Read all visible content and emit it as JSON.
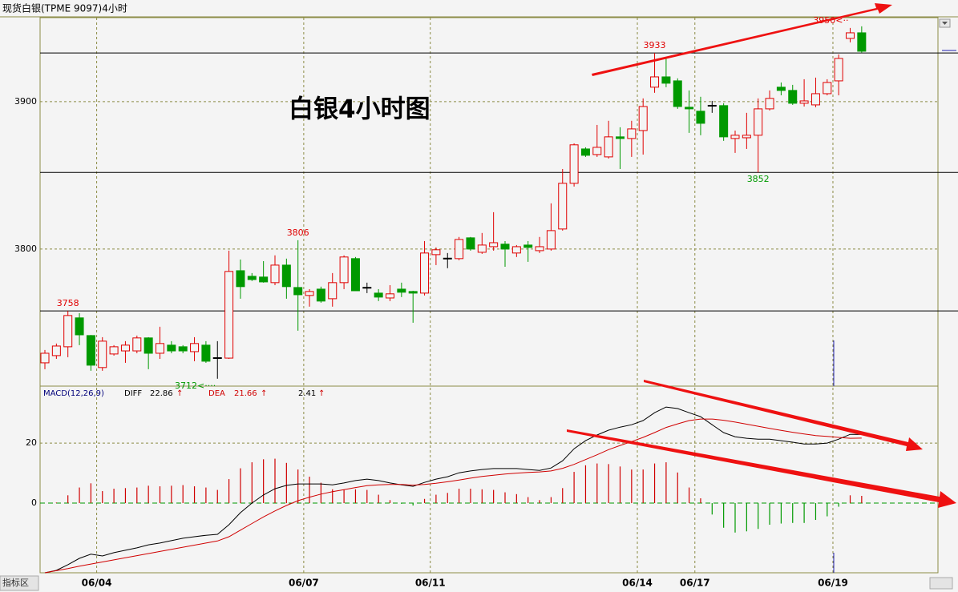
{
  "chart_data": [
    {
      "type": "candlestick",
      "title": "现货白银(TPME 9097)4小时",
      "annotation": "白银4小时图",
      "categories": [
        null,
        null,
        null,
        null,
        null,
        "06/04",
        null,
        null,
        null,
        null,
        null,
        null,
        null,
        null,
        null,
        null,
        null,
        null,
        null,
        null,
        null,
        null,
        null,
        "06/07",
        null,
        null,
        null,
        null,
        null,
        null,
        null,
        null,
        null,
        null,
        "06/11",
        null,
        null,
        null,
        null,
        null,
        null,
        null,
        null,
        null,
        null,
        null,
        null,
        null,
        null,
        null,
        null,
        null,
        "06/14",
        null,
        null,
        null,
        null,
        "06/17",
        null,
        null,
        null,
        null,
        null,
        null,
        null,
        null,
        null,
        null,
        null,
        "06/19",
        null,
        null
      ],
      "open": [
        3722.8,
        3727.7,
        3733.7,
        3753.3,
        3741.3,
        3719.6,
        3728.8,
        3730.9,
        3730.9,
        3739.7,
        3729.3,
        3734.8,
        3733.7,
        3730.4,
        3734.8,
        3726,
        3726,
        3785.3,
        3781.5,
        3781,
        3777.2,
        3789.1,
        3773.9,
        3768.5,
        3772.8,
        3766.3,
        3777.2,
        3793.5,
        3774,
        3770.1,
        3766.8,
        3772.8,
        3771.2,
        3770.1,
        3796.2,
        3793.5,
        3793.5,
        3807.6,
        3797.8,
        3801.6,
        3803.3,
        3797.3,
        3802.7,
        3798.9,
        3800,
        3813.6,
        3844.6,
        3867.9,
        3864.1,
        3862.5,
        3876.1,
        3875,
        3880.4,
        3909.8,
        3916.8,
        3914.1,
        3896.2,
        3893.5,
        3897.3,
        3897.3,
        3875,
        3875.5,
        3877.2,
        3895.1,
        3909.8,
        3907.6,
        3898.9,
        3897.8,
        3905.4,
        3914.1,
        3942.9,
        3946.7
      ],
      "high": [
        3731.5,
        3735.9,
        3758,
        3756.5,
        3741.7,
        3740.2,
        3734.8,
        3737.5,
        3741.3,
        3740.2,
        3747.3,
        3737.5,
        3734.8,
        3740.2,
        3737.5,
        3737.5,
        3798.9,
        3792.9,
        3783.7,
        3791.8,
        3795.7,
        3793.5,
        3806,
        3772.8,
        3774.5,
        3783.7,
        3795.7,
        3794.6,
        3777.2,
        3772.8,
        3775.5,
        3777.2,
        3771.7,
        3805.4,
        3801.1,
        3797.3,
        3808.2,
        3808.2,
        3810.9,
        3825,
        3805.4,
        3802.7,
        3805.4,
        3808.2,
        3831,
        3854.3,
        3871.7,
        3869,
        3884.2,
        3887,
        3882.6,
        3887,
        3902.2,
        3933,
        3929.3,
        3915.8,
        3907.6,
        3903.3,
        3900.5,
        3898.9,
        3880.4,
        3892.4,
        3902.2,
        3907.6,
        3913,
        3911.4,
        3915.2,
        3916.3,
        3915.2,
        3932,
        3950,
        3951.1
      ],
      "low": [
        3718.5,
        3725.5,
        3726.6,
        3734.8,
        3717.4,
        3717.4,
        3727.7,
        3722.8,
        3729.3,
        3718.5,
        3725.5,
        3729.3,
        3729.3,
        3723.9,
        3722.8,
        3712,
        3725.5,
        3766.3,
        3778.3,
        3777.2,
        3775.5,
        3766.3,
        3744.6,
        3760.9,
        3763.6,
        3760.9,
        3772.8,
        3771.7,
        3770.1,
        3764.7,
        3764.7,
        3767.4,
        3750,
        3768.5,
        3789.1,
        3787,
        3792.4,
        3798.9,
        3796.7,
        3798.9,
        3788,
        3794.6,
        3791.3,
        3797.3,
        3798.9,
        3812.5,
        3842.4,
        3862.5,
        3862.5,
        3861.4,
        3854.3,
        3862.5,
        3864.1,
        3906,
        3909.8,
        3895.1,
        3878.8,
        3877.2,
        3892.4,
        3873.4,
        3865.2,
        3867.9,
        3852,
        3894,
        3904.3,
        3897.8,
        3896.7,
        3896.2,
        3904.3,
        3904.3,
        3940.2,
        3933.2
      ],
      "close": [
        3729.3,
        3734.2,
        3754.9,
        3741.8,
        3721.2,
        3737.5,
        3733.7,
        3734.8,
        3739.7,
        3729.3,
        3735.9,
        3730.9,
        3730.9,
        3735.9,
        3723.9,
        3726.3,
        3784.8,
        3774.5,
        3779.3,
        3777.7,
        3789.1,
        3774.5,
        3769,
        3771.2,
        3764.7,
        3777.2,
        3794.6,
        3771.7,
        3773.6,
        3767.4,
        3769.6,
        3770.7,
        3770.1,
        3797.3,
        3799.5,
        3793.8,
        3806.5,
        3800,
        3802.7,
        3804.3,
        3800,
        3801.6,
        3801.1,
        3801.6,
        3812.5,
        3844.6,
        3870.7,
        3863.6,
        3869,
        3876.1,
        3875,
        3881.5,
        3896.7,
        3916.8,
        3912.5,
        3896.7,
        3895.1,
        3885.3,
        3897.5,
        3876.1,
        3877.2,
        3877.2,
        3895.1,
        3902.2,
        3907.6,
        3898.9,
        3900.5,
        3905.4,
        3913,
        3929.3,
        3946.7,
        3934.2
      ],
      "up_color": "#e00000",
      "down_color": "#009900",
      "doji_color": "#000000",
      "ylim": [
        3707,
        3957
      ],
      "yticks": [
        3800,
        3900
      ],
      "grid": true,
      "levels": [
        3933,
        3852,
        3758
      ],
      "price_labels": [
        3758,
        {
          "value": 3712,
          "label": "3712<····"
        },
        3806,
        3933,
        3852,
        {
          "value": 3950,
          "label": "3950<··"
        }
      ]
    },
    {
      "type": "macd",
      "title": "MACD(12,26,9)",
      "arrow": "↑",
      "series": [
        {
          "name": "DIFF",
          "color": "#000000",
          "values": [
            -23.2,
            -22.4,
            -20.5,
            -18.4,
            -17,
            -17.6,
            -16.5,
            -15.7,
            -14.9,
            -13.9,
            -13.3,
            -12.5,
            -11.7,
            -11.2,
            -10.7,
            -10.4,
            -7.2,
            -3.2,
            0,
            2.7,
            4.8,
            5.9,
            6.4,
            6.4,
            6.4,
            6.1,
            6.7,
            7.5,
            8,
            7.5,
            6.7,
            6.1,
            5.6,
            6.9,
            8,
            8.8,
            10.1,
            10.7,
            11.2,
            11.5,
            11.5,
            11.5,
            11.2,
            10.9,
            11.7,
            14.1,
            18.1,
            20.8,
            22.7,
            24.3,
            25.3,
            26.1,
            27.5,
            30.1,
            32,
            31.5,
            30.1,
            28.8,
            26.1,
            23.5,
            22.1,
            21.6,
            21.3,
            21.3,
            20.8,
            20.3,
            19.7,
            19.7,
            20,
            21.3,
            22.9,
            22.86
          ]
        },
        {
          "name": "DEA",
          "color": "#d00000",
          "values": [
            -23.2,
            -22.5,
            -21.8,
            -21,
            -20.3,
            -19.6,
            -18.9,
            -18.2,
            -17.5,
            -16.8,
            -16.1,
            -15.4,
            -14.7,
            -14,
            -13.3,
            -12.6,
            -11.2,
            -9,
            -6.8,
            -4.6,
            -2.6,
            -0.8,
            0.8,
            2,
            3,
            3.8,
            4.5,
            5.2,
            5.8,
            6.1,
            6.2,
            6.2,
            6,
            6.2,
            6.6,
            7.1,
            7.7,
            8.3,
            8.9,
            9.3,
            9.7,
            10,
            10.2,
            10.4,
            10.7,
            11.6,
            12.9,
            14.5,
            16.1,
            17.8,
            19.2,
            20.5,
            21.9,
            23.5,
            25.2,
            26.4,
            27.5,
            28,
            28,
            27.6,
            27,
            26.3,
            25.6,
            24.9,
            24.2,
            23.6,
            23,
            22.5,
            22.2,
            21.9,
            21.6,
            21.66
          ]
        }
      ],
      "histogram": {
        "color": "#d00000",
        "negative_color": "#009900",
        "values": [
          0,
          0.2,
          2.6,
          5.2,
          6.6,
          4,
          4.8,
          5,
          5.2,
          5.8,
          5.6,
          5.8,
          6,
          5.6,
          5.2,
          4.4,
          8,
          11.6,
          13.6,
          14.6,
          14.8,
          13.4,
          11.2,
          8.8,
          6.8,
          4.6,
          4.4,
          4.6,
          4.4,
          2.8,
          1,
          -0.2,
          -0.8,
          1.4,
          2.8,
          3.4,
          4.8,
          4.8,
          4.6,
          4.4,
          3.6,
          3,
          2,
          1,
          2,
          5,
          10.4,
          12.6,
          13.2,
          13,
          12.2,
          11.2,
          11.2,
          13.2,
          13.6,
          10.2,
          5.2,
          1.6,
          -3.8,
          -8.2,
          -9.8,
          -9.4,
          -8.6,
          -7.2,
          -6.8,
          -6.6,
          -6.6,
          -5.6,
          -4.4,
          -1.2,
          2.6,
          2.41
        ]
      },
      "ylim": [
        -23.2,
        38.7
      ],
      "yticks": [
        0,
        20
      ],
      "grid": true
    }
  ],
  "indicator_button": "指标区"
}
